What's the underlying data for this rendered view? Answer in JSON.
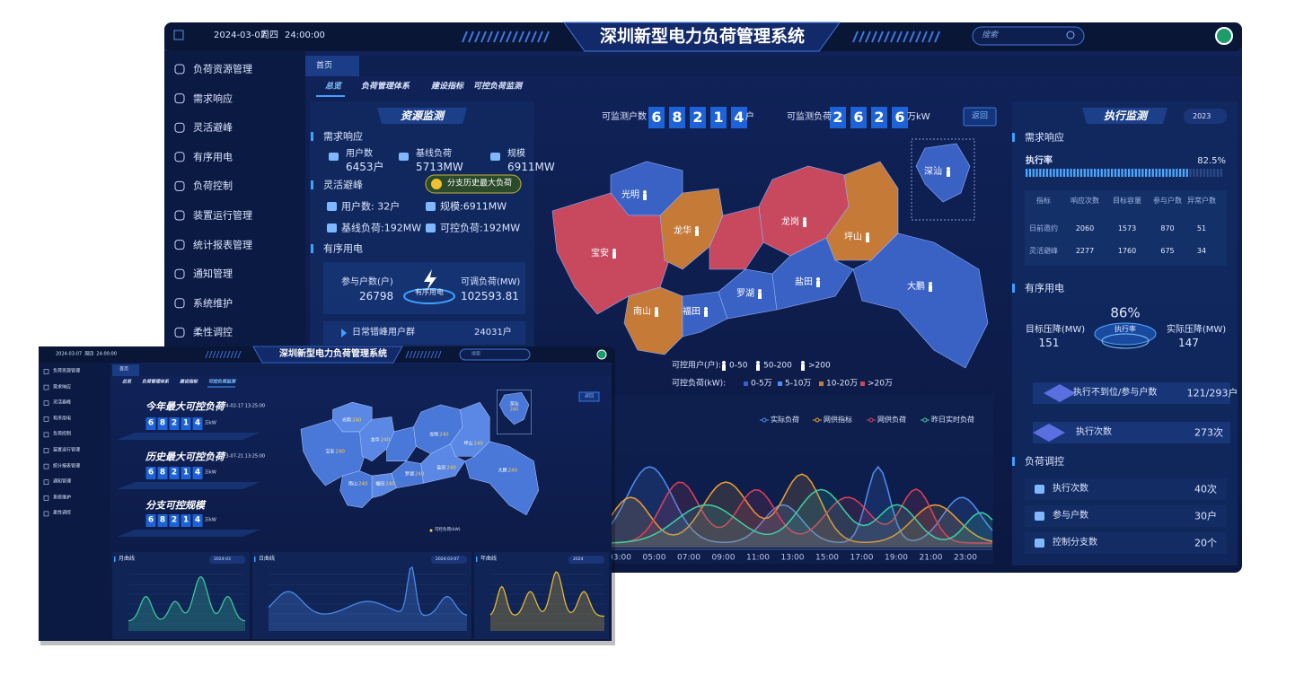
{
  "back": {
    "topbar": {
      "date": "2024-03-07",
      "weekday": "周四",
      "time": "24:00:00",
      "title": "深圳新型电力负荷管理系统",
      "search": "搜索"
    },
    "menu": [
      "负荷资源管理",
      "需求响应",
      "灵活避峰",
      "有序用电",
      "负荷控制",
      "装置运行管理",
      "统计报表管理",
      "通知管理",
      "系统维护",
      "柔性调控"
    ],
    "tab": "首页",
    "subtabs": [
      "总览",
      "负荷管理体系",
      "建设指标",
      "可控负荷监测"
    ],
    "resource": {
      "title": "资源监测",
      "demand": {
        "heading": "需求响应",
        "items": [
          {
            "label": "用户数",
            "value": "6453户"
          },
          {
            "label": "基线负荷",
            "value": "5713MW"
          },
          {
            "label": "规模",
            "value": "6911MW"
          }
        ]
      },
      "peak": {
        "heading": "灵活避峰",
        "badge": "分支历史最大负荷",
        "items": [
          "用户数: 32户",
          "规模:6911MW",
          "基线负荷:192MW",
          "可控负荷:192MW"
        ]
      },
      "orderly": {
        "heading": "有序用电",
        "households_label": "参与户数(户)",
        "households": "26798",
        "center": "有序用电",
        "load_label": "可调负荷(MW)",
        "load": "102593.81",
        "group": "日常错峰用户群",
        "group_value": "24031户"
      }
    },
    "monitor": {
      "households_label": "可监测户数",
      "households_digits": [
        "6",
        "8",
        "2",
        "1",
        "4"
      ],
      "households_unit": "户",
      "load_label": "可监测负荷",
      "load_digits": [
        "2",
        "6",
        "2",
        "6"
      ],
      "load_unit": "万kW",
      "back": "返回"
    },
    "map": {
      "districts": [
        "光明",
        "宝安",
        "龙华",
        "龙岗",
        "坪山",
        "南山",
        "福田",
        "罗湖",
        "盐田",
        "大鹏"
      ],
      "inset": "深汕",
      "legend_users": {
        "label": "可控用户(户):",
        "items": [
          "0-50",
          "50-200",
          ">200"
        ]
      },
      "legend_load": {
        "label": "可控负荷(kW):",
        "items": [
          "0-5万",
          "5-10万",
          "10-20万",
          ">20万"
        ]
      }
    },
    "curve": {
      "legend": [
        "实际负荷",
        "网供指标",
        "网供负荷",
        "昨日实时负荷"
      ],
      "x_labels": [
        "03:00",
        "05:00",
        "07:00",
        "09:00",
        "11:00",
        "13:00",
        "15:00",
        "17:00",
        "19:00",
        "21:00",
        "23:00"
      ]
    },
    "execution": {
      "title": "执行监测",
      "year": "2023",
      "demand": {
        "heading": "需求响应",
        "rate_label": "执行率",
        "rate": "82.5%",
        "columns": [
          "指标",
          "响应次数",
          "目标容量",
          "参与户数",
          "异常户数"
        ],
        "rows": [
          [
            "日前邀约",
            "2060",
            "1573",
            "870",
            "51"
          ],
          [
            "灵活避峰",
            "2277",
            "1760",
            "675",
            "34"
          ]
        ]
      },
      "orderly": {
        "heading": "有序用电",
        "rate": "86%",
        "rate_label": "执行率",
        "target_label": "目标压降(MW)",
        "target": "151",
        "actual_label": "实际压降(MW)",
        "actual": "147",
        "bars": [
          {
            "label": "执行不到位/参与户数",
            "value": "121/293户"
          },
          {
            "label": "执行次数",
            "value": "273次"
          }
        ]
      },
      "control": {
        "heading": "负荷调控",
        "rows": [
          {
            "label": "执行次数",
            "value": "40次"
          },
          {
            "label": "参与户数",
            "value": "30户"
          },
          {
            "label": "控制分支数",
            "value": "20个"
          }
        ]
      }
    }
  },
  "front": {
    "topbar": {
      "datetime": "2024-03-07  周四  24:00:00",
      "title": "深圳新型电力负荷管理系统",
      "search": "搜索"
    },
    "menu": [
      "负荷资源管理",
      "需求响应",
      "灵活避峰",
      "有序用电",
      "负荷控制",
      "装置运行管理",
      "统计报表管理",
      "通知管理",
      "系统维护",
      "柔性调控"
    ],
    "tab": "首页",
    "subtabs": [
      "总览",
      "负荷管理体系",
      "建设指标",
      "可控负荷监测"
    ],
    "cards": [
      {
        "title": "今年最大可控负荷",
        "time": "2024-02-17 13:25:00",
        "digits": [
          "6",
          "8",
          "2",
          "1",
          "4"
        ],
        "unit": "万kW"
      },
      {
        "title": "历史最大可控负荷",
        "time": "2023-07-21 13:25:00",
        "digits": [
          "6",
          "8",
          "2",
          "1",
          "4"
        ],
        "unit": "万kW"
      },
      {
        "title": "分支可控规模",
        "digits": [
          "6",
          "8",
          "2",
          "1",
          "4"
        ],
        "unit": "万kW"
      }
    ],
    "map": {
      "districts": [
        {
          "name": "光明",
          "value": "240"
        },
        {
          "name": "宝安",
          "value": "240"
        },
        {
          "name": "龙华",
          "value": "240"
        },
        {
          "name": "龙岗",
          "value": "240"
        },
        {
          "name": "坪山",
          "value": "240"
        },
        {
          "name": "南山",
          "value": "240"
        },
        {
          "name": "福田",
          "value": "240"
        },
        {
          "name": "罗湖",
          "value": "240"
        },
        {
          "name": "盐田",
          "value": "240"
        },
        {
          "name": "大鹏",
          "value": "240"
        }
      ],
      "inset": {
        "name": "深汕",
        "value": "240"
      },
      "legend": "可控负荷(kW)",
      "back": "返回"
    },
    "charts": [
      {
        "title": "月曲线",
        "period": "2024-03"
      },
      {
        "title": "日曲线",
        "period": "2024-03-07"
      },
      {
        "title": "年曲线",
        "period": "2024"
      }
    ]
  }
}
